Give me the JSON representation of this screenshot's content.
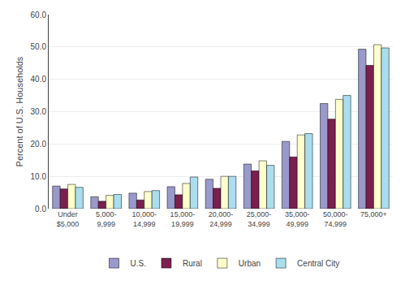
{
  "chart_data": {
    "type": "bar",
    "categories": [
      "Under\n$5,000",
      "5,000-\n9,999",
      "10,000-\n14,999",
      "15,000-\n19,999",
      "20,000-\n24,999",
      "25,000-\n34,999",
      "35,000-\n49,999",
      "50,000-\n74,999",
      "75,000+"
    ],
    "series": [
      {
        "name": "U.S.",
        "color": "#9999cc",
        "values": [
          7.0,
          3.7,
          4.8,
          6.8,
          9.1,
          13.8,
          20.8,
          32.5,
          49.3
        ]
      },
      {
        "name": "Rural",
        "color": "#7b1f4e",
        "values": [
          6.1,
          2.3,
          2.7,
          4.3,
          6.3,
          11.7,
          16.0,
          27.7,
          44.3
        ]
      },
      {
        "name": "Urban",
        "color": "#ffffcc",
        "values": [
          7.5,
          4.1,
          5.3,
          7.8,
          10.0,
          14.8,
          22.8,
          33.8,
          50.7
        ]
      },
      {
        "name": "Central City",
        "color": "#aaddee",
        "values": [
          6.6,
          4.4,
          5.6,
          9.8,
          10.0,
          13.4,
          23.2,
          35.0,
          49.7
        ]
      }
    ],
    "ylabel": "Percent of U.S. Households",
    "ylim": [
      0,
      60
    ],
    "yticks": [
      {
        "value": 0,
        "label": "0.0"
      },
      {
        "value": 10,
        "label": "10.0"
      },
      {
        "value": 20,
        "label": "20.0"
      },
      {
        "value": 30,
        "label": "30.0"
      },
      {
        "value": 40,
        "label": "40.0"
      },
      {
        "value": 50,
        "label": "50.0"
      },
      {
        "value": 60,
        "label": "60.0"
      }
    ],
    "grid": true,
    "legend": "bottom"
  }
}
